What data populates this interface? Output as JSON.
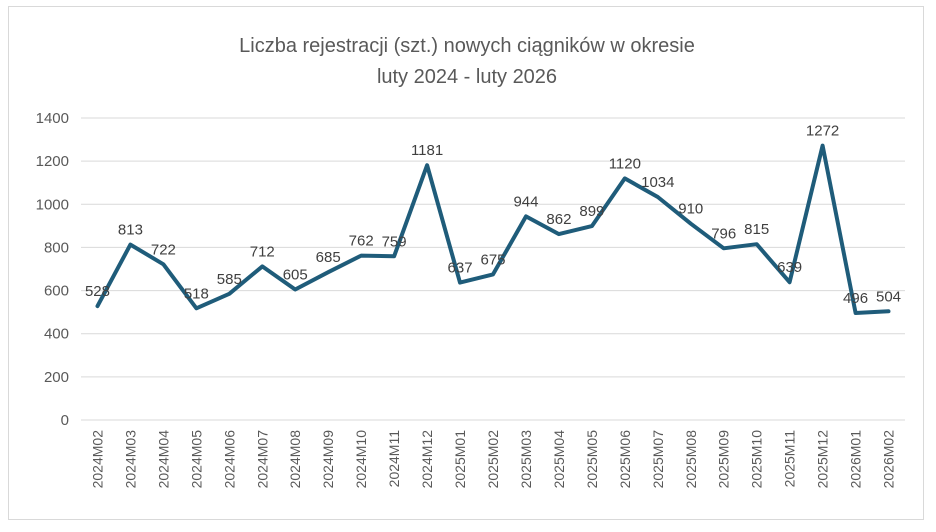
{
  "chart_data": {
    "type": "line",
    "title": "Liczba rejestracji (szt.) nowych ciągników w okresie",
    "subtitle": "luty 2024 - luty 2026",
    "xlabel": "",
    "ylabel": "",
    "ylim": [
      0,
      1400
    ],
    "y_ticks": [
      "0",
      "200",
      "400",
      "600",
      "800",
      "1000",
      "1200",
      "1400"
    ],
    "grid": true,
    "legend": "none",
    "line_color": "#1f5c7a",
    "categories": [
      "2024M02",
      "2024M03",
      "2024M04",
      "2024M05",
      "2024M06",
      "2024M07",
      "2024M08",
      "2024M09",
      "2024M10",
      "2024M11",
      "2024M12",
      "2025M01",
      "2025M02",
      "2025M03",
      "2025M04",
      "2025M05",
      "2025M06",
      "2025M07",
      "2025M08",
      "2025M09",
      "2025M10",
      "2025M11",
      "2025M12",
      "2026M01",
      "2026M02"
    ],
    "values": [
      528,
      813,
      722,
      518,
      585,
      712,
      605,
      685,
      762,
      759,
      1181,
      637,
      675,
      944,
      862,
      899,
      1120,
      1034,
      910,
      796,
      815,
      639,
      1272,
      496,
      504
    ]
  }
}
